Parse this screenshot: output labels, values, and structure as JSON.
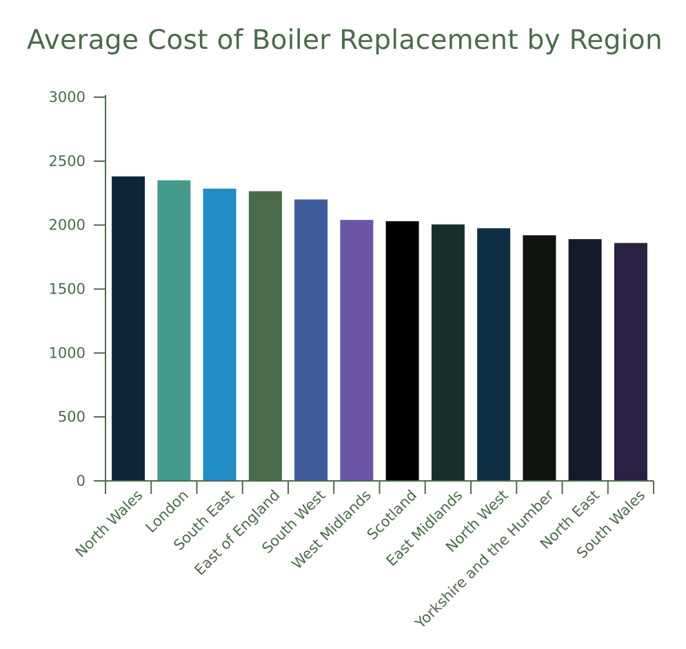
{
  "colors": {
    "text": "#4a6b4a",
    "axis": "#4a6b4a",
    "background": "#ffffff"
  },
  "chart_data": {
    "type": "bar",
    "title": "Average Cost of Boiler Replacement by Region",
    "xlabel": "",
    "ylabel": "",
    "ylim": [
      0,
      3000
    ],
    "yticks": [
      0,
      500,
      1000,
      1500,
      2000,
      2500,
      3000
    ],
    "categories": [
      "North Wales",
      "London",
      "South East",
      "East of England",
      "South West",
      "West Midlands",
      "Scotland",
      "East Midlands",
      "North West",
      "Yorkshire and the Humber",
      "North East",
      "South Wales"
    ],
    "values": [
      2380,
      2350,
      2285,
      2265,
      2200,
      2040,
      2030,
      2005,
      1975,
      1920,
      1890,
      1860
    ],
    "bar_colors": [
      "#0e263a",
      "#43998a",
      "#228cc6",
      "#4a6b4a",
      "#3f5b99",
      "#6a55a6",
      "#000000",
      "#172e2b",
      "#0d2e43",
      "#0d130d",
      "#14192c",
      "#2b2142"
    ],
    "grid": false,
    "legend": "none"
  }
}
